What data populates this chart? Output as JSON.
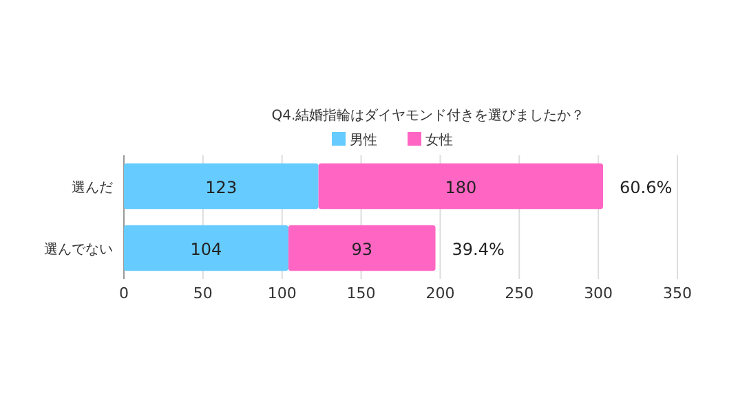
{
  "chart_data": {
    "type": "bar",
    "title": "Q4.結婚指輪はダイヤモンド付きを選びましたか？",
    "orientation": "horizontal",
    "stacked": true,
    "categories": [
      "選んだ",
      "選んでない"
    ],
    "series": [
      {
        "name": "男性",
        "color": "#66ccff",
        "values": [
          123,
          104
        ]
      },
      {
        "name": "女性",
        "color": "#ff66c4",
        "values": [
          180,
          93
        ]
      }
    ],
    "xlim": [
      0,
      350
    ],
    "xticks": [
      0,
      50,
      100,
      150,
      200,
      250,
      300,
      350
    ],
    "grid": "x",
    "legend": "top",
    "data_labels": true,
    "annotations": [
      {
        "text": "60.6%",
        "x": 303,
        "y": "選んだ"
      },
      {
        "text": "39.4%",
        "x": 197,
        "y": "選んでない"
      }
    ]
  }
}
